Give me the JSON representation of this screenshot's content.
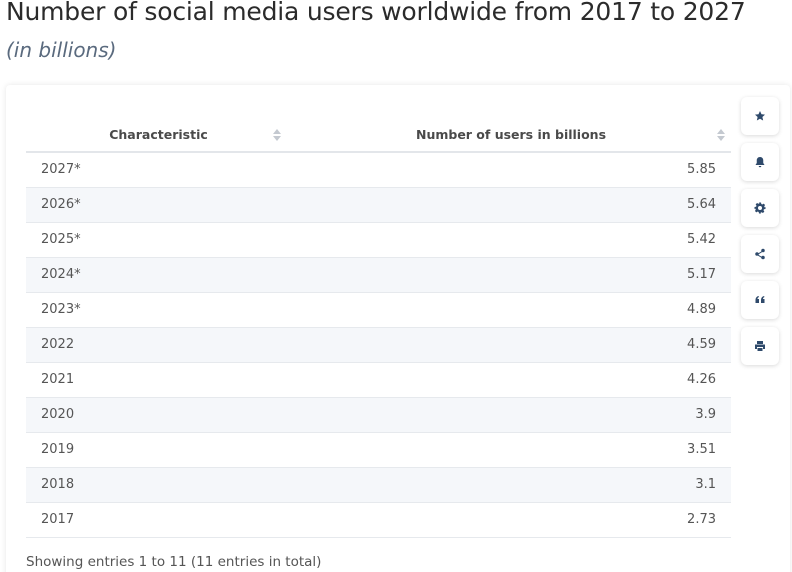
{
  "title": "Number of social media users worldwide from 2017 to 2027",
  "subtitle": "(in billions)",
  "table": {
    "col1_header": "Characteristic",
    "col2_header": "Number of users in billions"
  },
  "footer": "Showing entries 1 to 11 (11 entries in total)",
  "sidebar_icons": [
    "star-icon",
    "bell-icon",
    "gear-icon",
    "share-icon",
    "quote-icon",
    "print-icon"
  ],
  "chart_data": {
    "type": "table",
    "columns": [
      "Characteristic",
      "Number of users in billions"
    ],
    "rows": [
      {
        "label": "2027*",
        "value": "5.85"
      },
      {
        "label": "2026*",
        "value": "5.64"
      },
      {
        "label": "2025*",
        "value": "5.42"
      },
      {
        "label": "2024*",
        "value": "5.17"
      },
      {
        "label": "2023*",
        "value": "4.89"
      },
      {
        "label": "2022",
        "value": "4.59"
      },
      {
        "label": "2021",
        "value": "4.26"
      },
      {
        "label": "2020",
        "value": "3.9"
      },
      {
        "label": "2019",
        "value": "3.51"
      },
      {
        "label": "2018",
        "value": "3.1"
      },
      {
        "label": "2017",
        "value": "2.73"
      }
    ]
  }
}
